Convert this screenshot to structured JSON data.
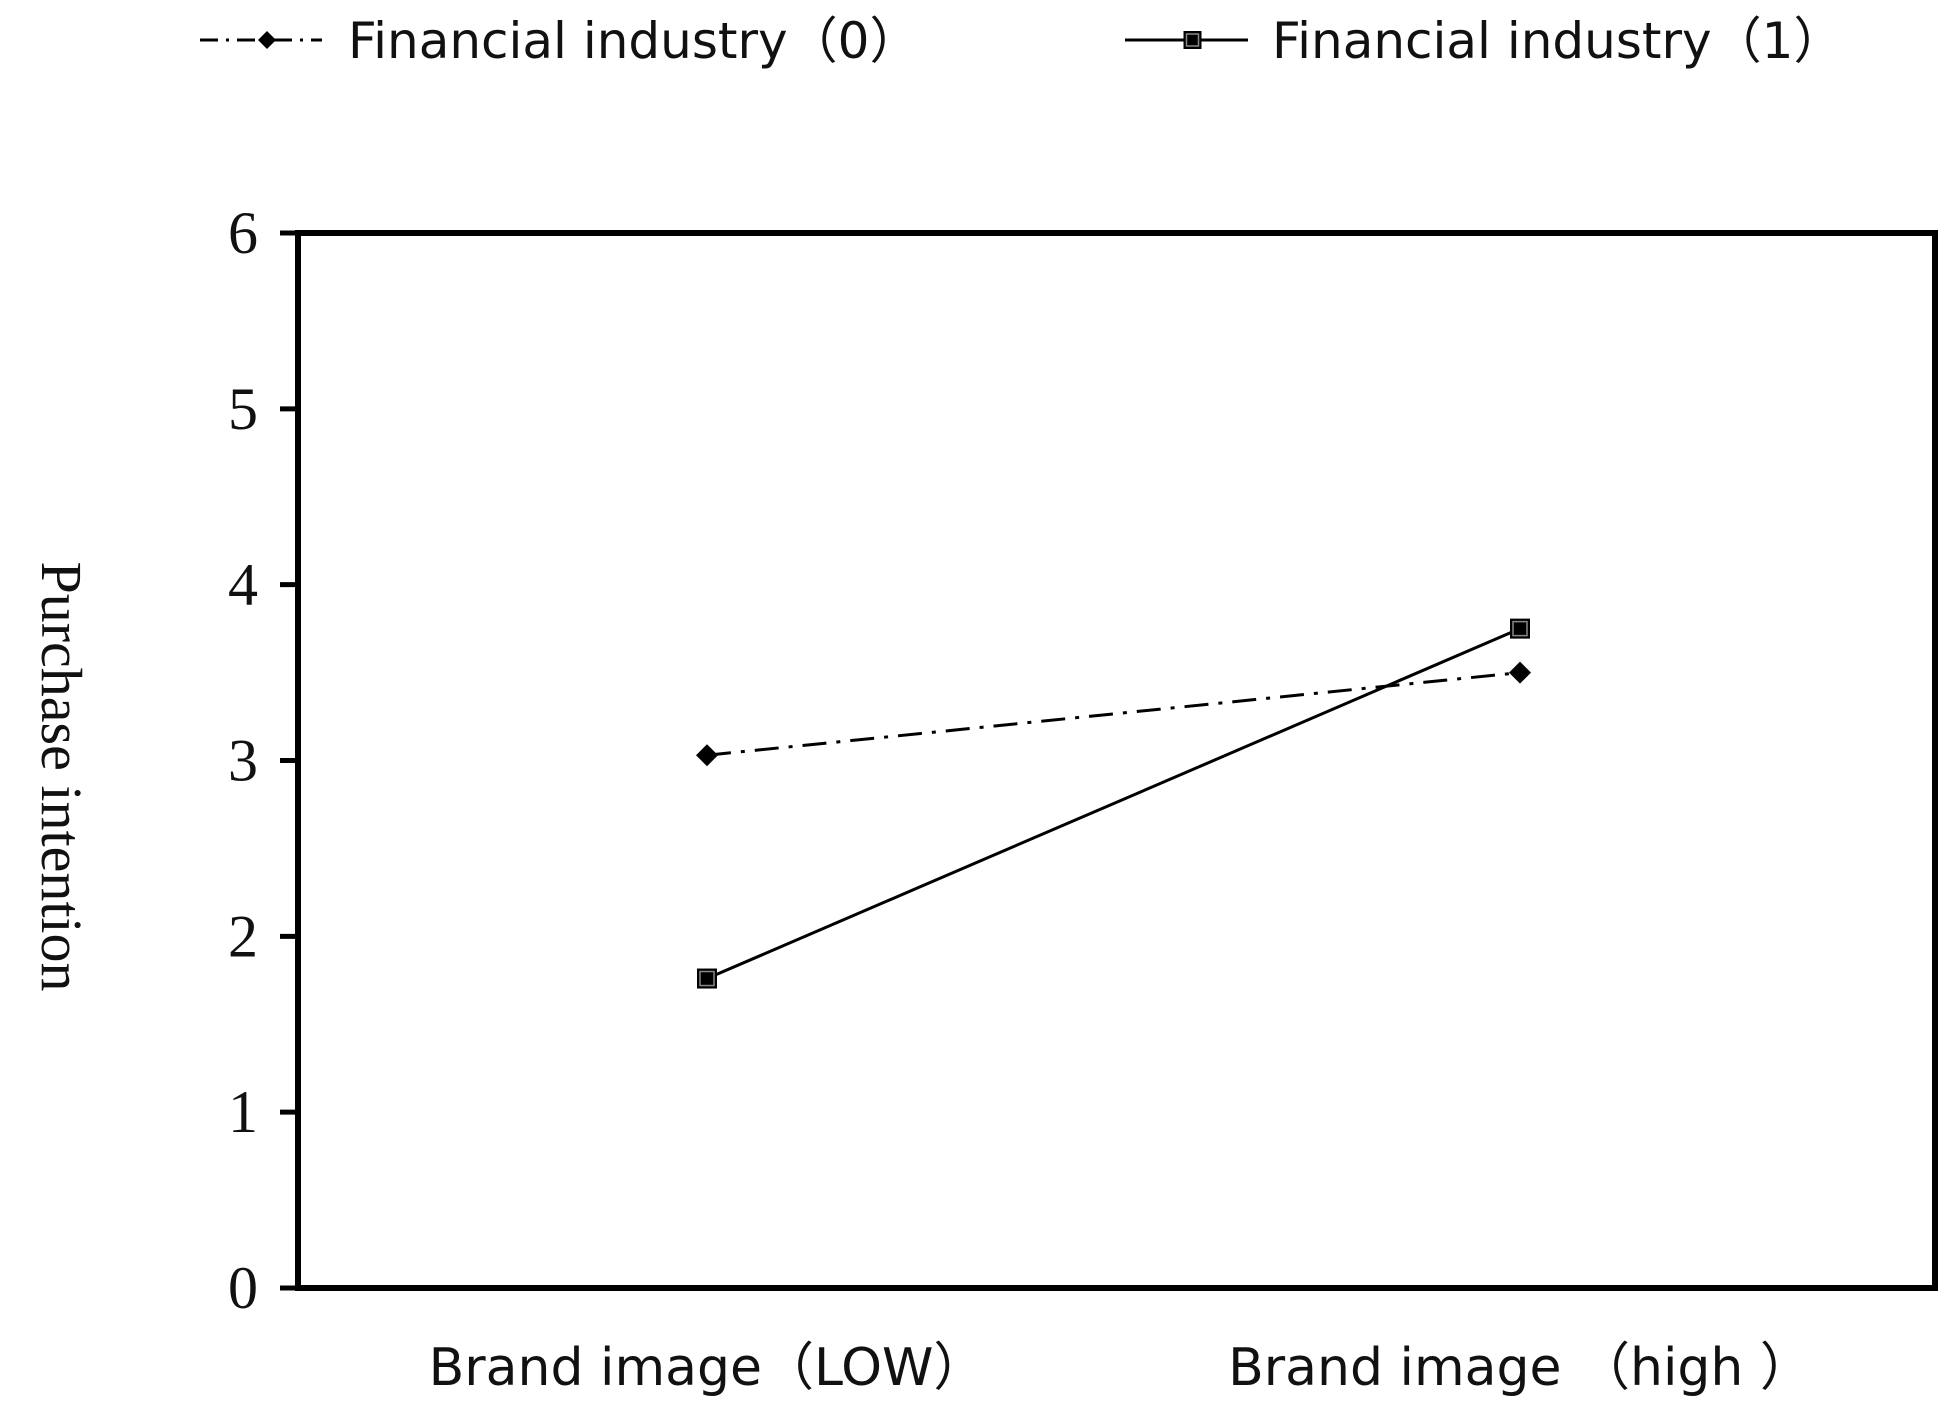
{
  "chart_data": {
    "type": "line",
    "title": "",
    "xlabel": "",
    "ylabel": "Purchase intention",
    "categories": [
      "Brand image（LOW）",
      "Brand image （high ）"
    ],
    "ylim": [
      0,
      6
    ],
    "yticks": [
      0,
      1,
      2,
      3,
      4,
      5,
      6
    ],
    "grid": false,
    "legend_position": "top",
    "series": [
      {
        "name": "Financial industry（0）",
        "values": [
          3.03,
          3.5
        ],
        "line_style": "dash-dot",
        "marker": "diamond",
        "color": "#000000"
      },
      {
        "name": "Financial industry（1）",
        "values": [
          1.76,
          3.75
        ],
        "line_style": "solid",
        "marker": "square",
        "color": "#000000"
      }
    ]
  }
}
